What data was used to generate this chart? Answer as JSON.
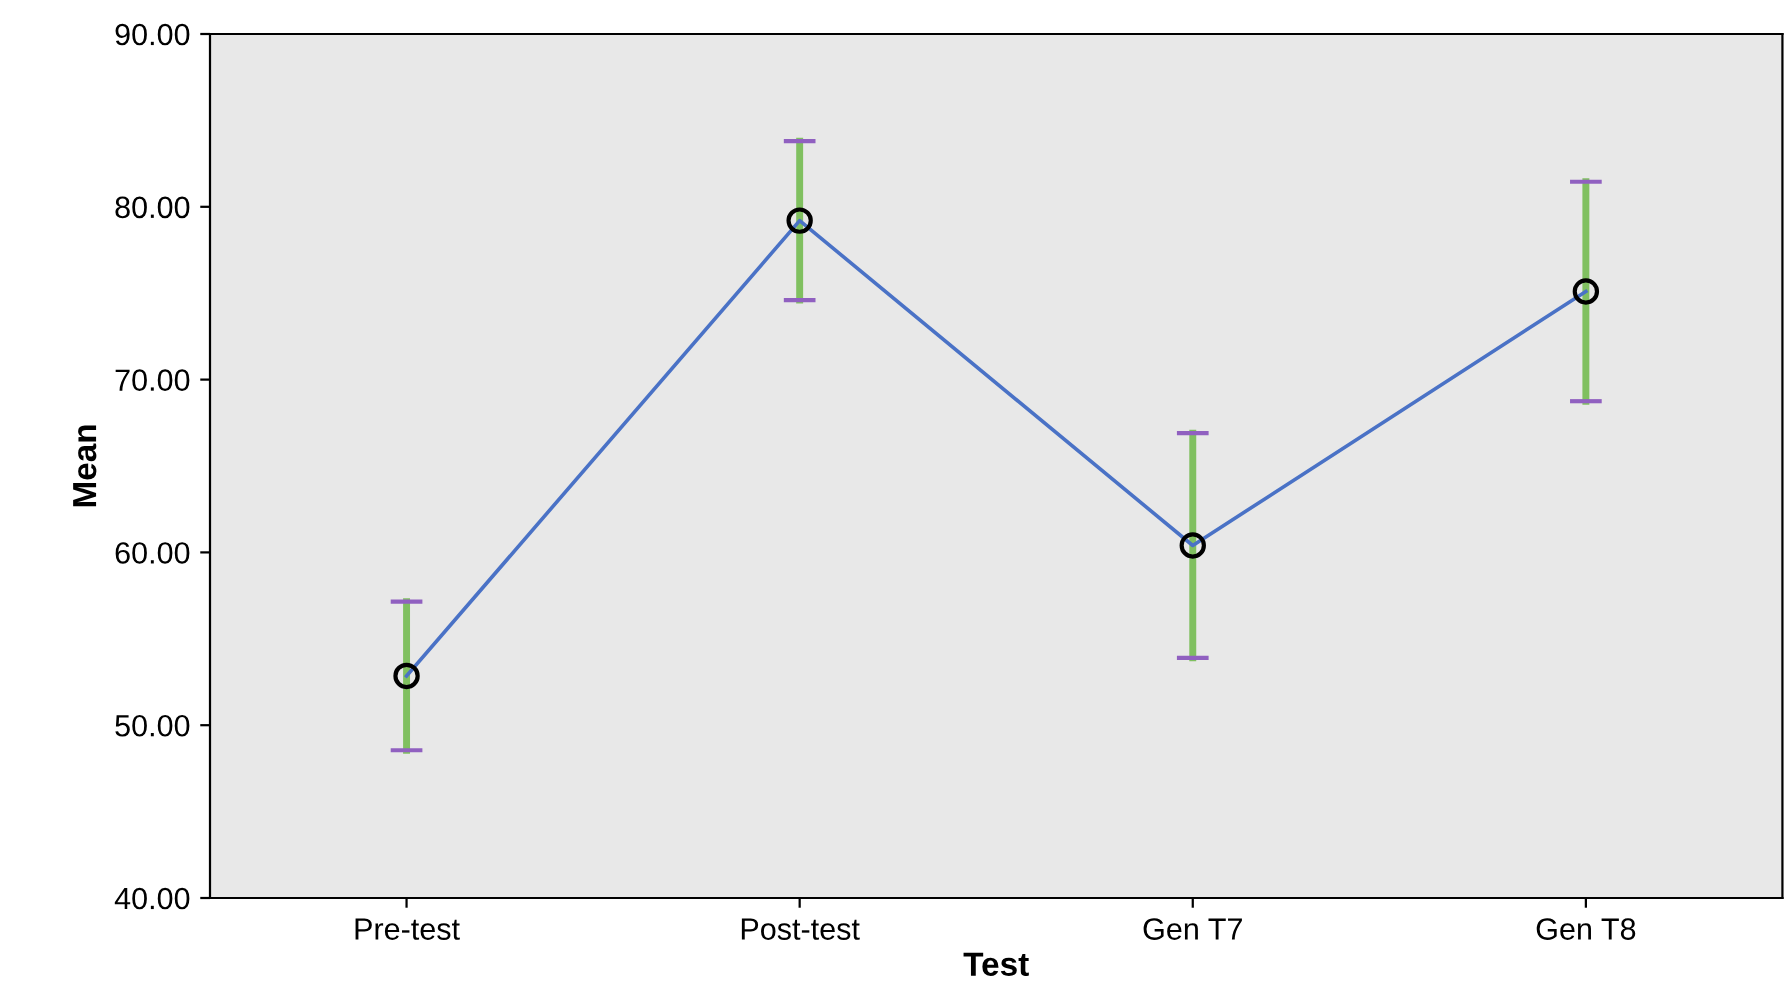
{
  "chart_data": {
    "type": "line",
    "xlabel": "Test",
    "ylabel": "Mean",
    "categories": [
      "Pre-test",
      "Post-test",
      "Gen T7",
      "Gen T8"
    ],
    "series": [
      {
        "color": "#4a72c6",
        "values": [
          52.85,
          79.2,
          60.4,
          75.1
        ],
        "errors": [
          4.3,
          4.6,
          6.5,
          6.35
        ]
      }
    ],
    "ylim": [
      40,
      90
    ],
    "yticks": [
      {
        "value": 40,
        "label": "40.00"
      },
      {
        "value": 50,
        "label": "50.00"
      },
      {
        "value": 60,
        "label": "60.00"
      },
      {
        "value": 70,
        "label": "70.00"
      },
      {
        "value": 80,
        "label": "80.00"
      },
      {
        "value": 90,
        "label": "90.00"
      }
    ],
    "marker": "circle",
    "line_style": "solid",
    "grid": false,
    "legend": false
  }
}
